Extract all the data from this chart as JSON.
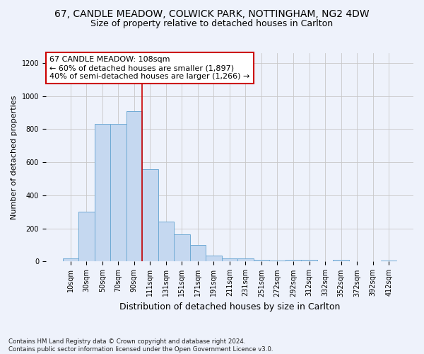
{
  "title_line1": "67, CANDLE MEADOW, COLWICK PARK, NOTTINGHAM, NG2 4DW",
  "title_line2": "Size of property relative to detached houses in Carlton",
  "xlabel": "Distribution of detached houses by size in Carlton",
  "ylabel": "Number of detached properties",
  "footnote": "Contains HM Land Registry data © Crown copyright and database right 2024.\nContains public sector information licensed under the Open Government Licence v3.0.",
  "bar_labels": [
    "10sqm",
    "30sqm",
    "50sqm",
    "70sqm",
    "90sqm",
    "111sqm",
    "131sqm",
    "151sqm",
    "171sqm",
    "191sqm",
    "211sqm",
    "231sqm",
    "251sqm",
    "272sqm",
    "292sqm",
    "312sqm",
    "332sqm",
    "352sqm",
    "372sqm",
    "392sqm",
    "412sqm"
  ],
  "bar_values": [
    20,
    300,
    830,
    830,
    910,
    560,
    240,
    165,
    100,
    35,
    20,
    20,
    12,
    8,
    10,
    10,
    0,
    10,
    0,
    0,
    8
  ],
  "bar_color": "#c5d8f0",
  "bar_edge_color": "#6faad4",
  "ylim": [
    0,
    1260
  ],
  "yticks": [
    0,
    200,
    400,
    600,
    800,
    1000,
    1200
  ],
  "annotation_text": "67 CANDLE MEADOW: 108sqm\n← 60% of detached houses are smaller (1,897)\n40% of semi-detached houses are larger (1,266) →",
  "vline_bin_index": 5,
  "annotation_box_facecolor": "#ffffff",
  "annotation_box_edgecolor": "#cc0000",
  "vline_color": "#cc0000",
  "background_color": "#eef2fb",
  "grid_color": "#c8c8c8",
  "title1_fontsize": 10,
  "title2_fontsize": 9,
  "xlabel_fontsize": 9,
  "ylabel_fontsize": 8,
  "tick_fontsize": 7,
  "annotation_fontsize": 8
}
